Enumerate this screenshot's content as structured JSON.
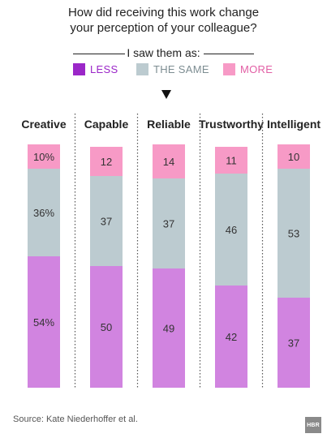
{
  "title_line1": "How did receiving this work change",
  "title_line2": "your perception of your colleague?",
  "legend": {
    "title": "I saw them as:",
    "items": [
      {
        "label": "LESS",
        "color": "#9b27c8",
        "text_color": "#9b27c8"
      },
      {
        "label": "THE SAME",
        "color": "#bccbd0",
        "text_color": "#7d8d92"
      },
      {
        "label": "MORE",
        "color": "#f79ac6",
        "text_color": "#e25fa5"
      }
    ]
  },
  "chart_data": {
    "type": "bar",
    "stacked": true,
    "orientation": "vertical",
    "categories": [
      "Creative",
      "Capable",
      "Reliable",
      "Trustworthy",
      "Intelligent"
    ],
    "series": [
      {
        "name": "LESS",
        "color": "#d184e0",
        "values": [
          54,
          50,
          49,
          42,
          37
        ],
        "labels": [
          "54%",
          "50",
          "49",
          "42",
          "37"
        ]
      },
      {
        "name": "THE SAME",
        "color": "#bccbd0",
        "values": [
          36,
          37,
          37,
          46,
          53
        ],
        "labels": [
          "36%",
          "37",
          "37",
          "46",
          "53"
        ]
      },
      {
        "name": "MORE",
        "color": "#f79ac6",
        "values": [
          10,
          12,
          14,
          11,
          10
        ],
        "labels": [
          "10%",
          "12",
          "14",
          "11",
          "10"
        ]
      }
    ],
    "ylim": [
      0,
      100
    ]
  },
  "source": "Source: Kate Niederhoffer et al.",
  "logo_text": "HBR"
}
